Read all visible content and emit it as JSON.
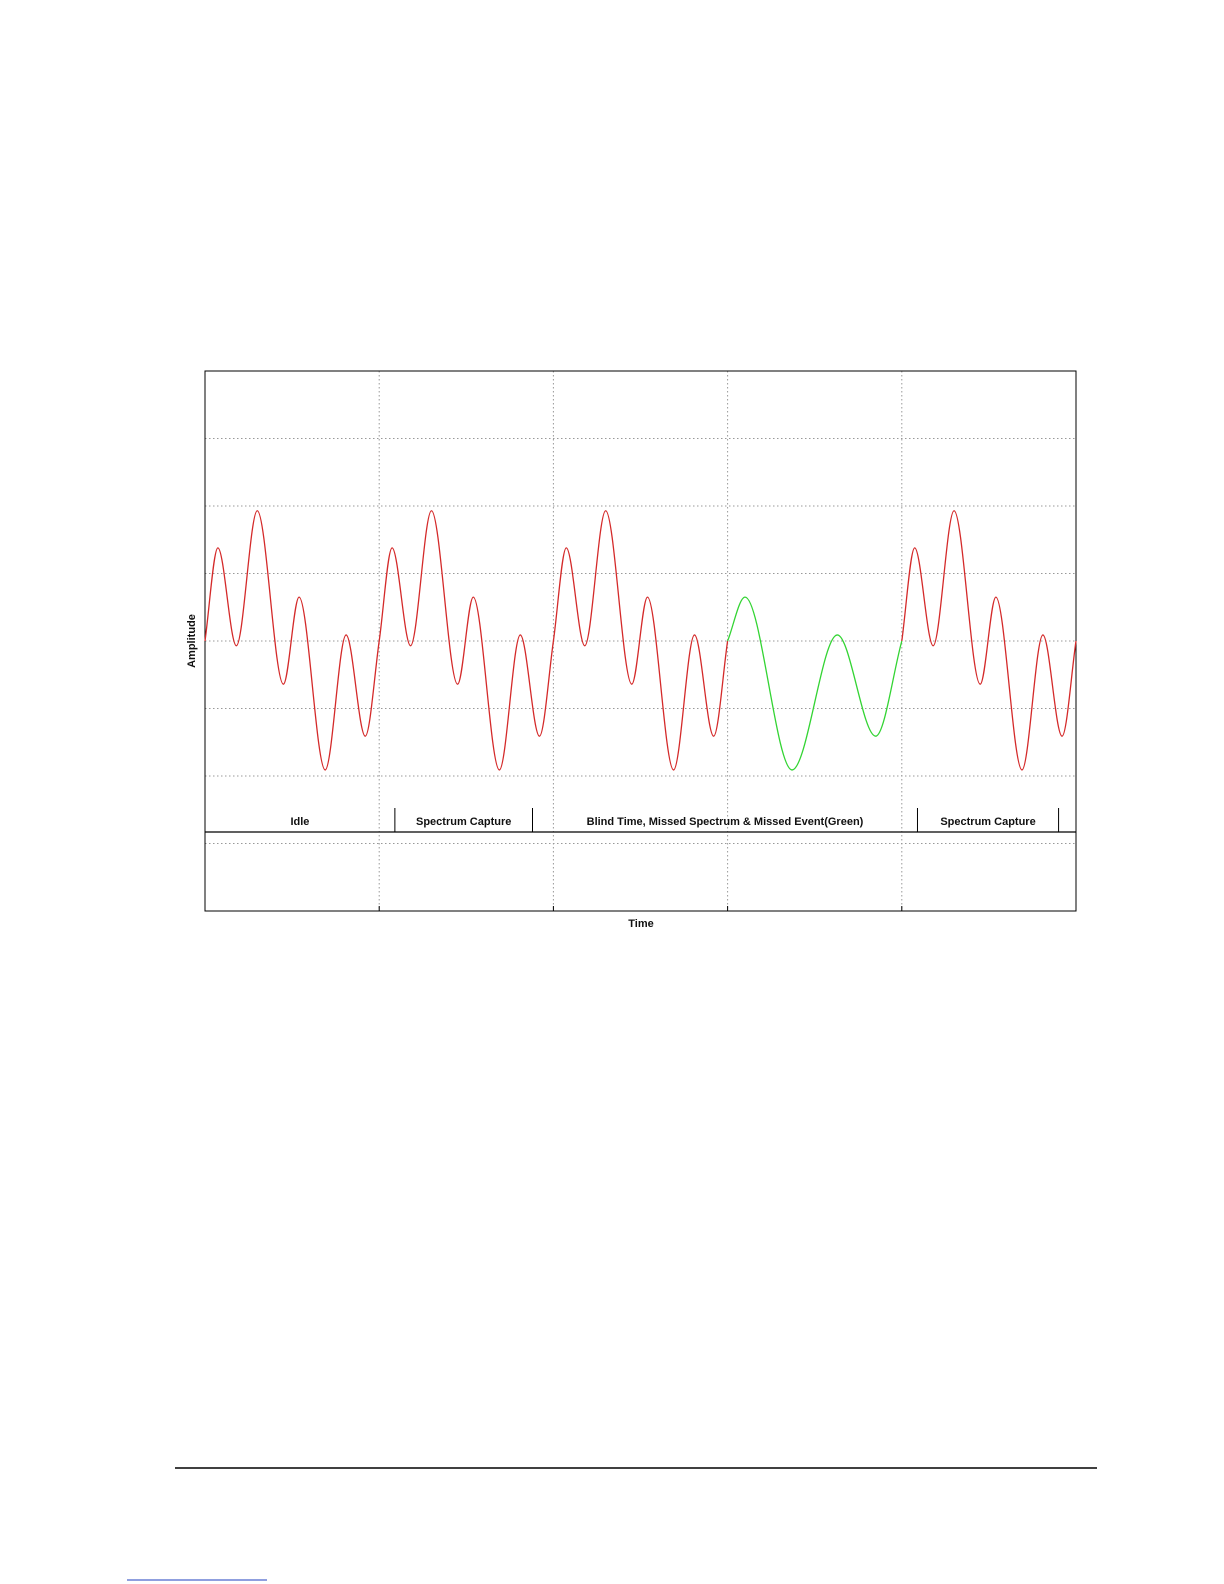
{
  "chart_data": {
    "type": "line",
    "x_label": "Time",
    "y_label": "Amplitude",
    "xlim": [
      0,
      5
    ],
    "ylim": [
      -4,
      4
    ],
    "xticks": [
      0,
      1,
      2,
      3,
      4,
      5
    ],
    "yticks": [
      -4,
      -3,
      -2,
      -1,
      0,
      1,
      2,
      3,
      4
    ],
    "grid": true,
    "series": [
      {
        "color": "#d42a2a",
        "x": [
          0,
          0.074,
          0.18,
          0.3,
          0.45,
          0.54,
          0.69,
          0.81,
          0.92,
          1,
          1.074,
          1.18,
          1.3,
          1.45,
          1.54,
          1.69,
          1.81,
          1.92,
          2,
          2.074,
          2.18,
          2.3,
          2.45,
          2.54,
          2.69,
          2.81,
          2.92,
          3,
          3.5,
          4,
          4.074,
          4.18,
          4.3,
          4.45,
          4.54,
          4.69,
          4.81,
          4.92,
          5
        ],
        "values": [
          0,
          1.38,
          -0.07,
          1.93,
          -0.64,
          0.65,
          -1.91,
          0.09,
          -1.41,
          0,
          1.38,
          -0.07,
          1.93,
          -0.64,
          0.65,
          -1.91,
          0.09,
          -1.41,
          0,
          1.38,
          -0.07,
          1.93,
          -0.64,
          0.65,
          -1.91,
          0.09,
          -1.41,
          0,
          null,
          0,
          1.38,
          -0.07,
          1.93,
          -0.64,
          0.65,
          -1.91,
          0.09,
          -1.41,
          0
        ]
      },
      {
        "color": "#33d433",
        "x": [
          3,
          3.1,
          3.37,
          3.63,
          3.85,
          4
        ],
        "values": [
          0,
          0.65,
          -1.91,
          0.09,
          -1.41,
          0
        ]
      }
    ],
    "phases": [
      {
        "label": "Idle",
        "start": 0,
        "end": 1.09
      },
      {
        "label": "Spectrum Capture",
        "start": 1.09,
        "end": 1.88
      },
      {
        "label": "Blind Time, Missed Spectrum & Missed Event(Green)",
        "start": 1.88,
        "end": 4.09
      },
      {
        "label": "Spectrum Capture",
        "start": 4.09,
        "end": 4.9
      }
    ]
  }
}
